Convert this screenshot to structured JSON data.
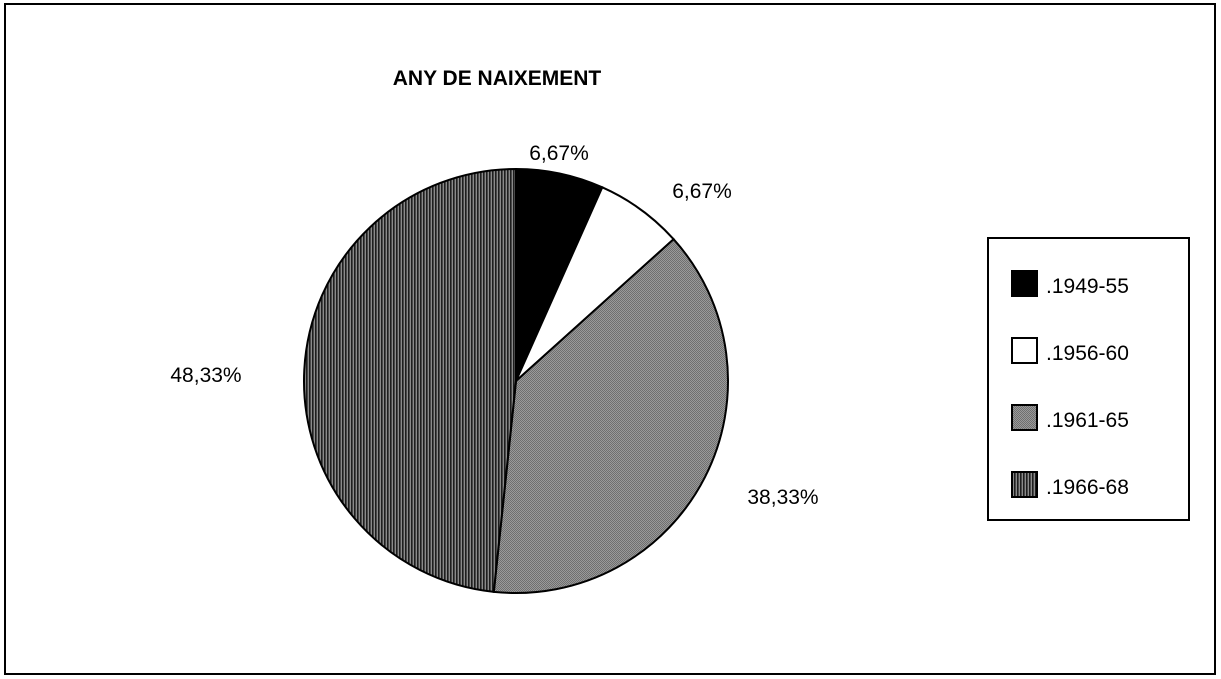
{
  "chart_data": {
    "type": "pie",
    "title": "ANY DE NAIXEMENT",
    "categories": [
      ".1949-55",
      ".1956-60",
      ".1961-65",
      ".1966-68"
    ],
    "values": [
      6.67,
      6.67,
      38.33,
      48.33
    ],
    "labels": [
      "6,67%",
      "6,67%",
      "38,33%",
      "48,33%"
    ],
    "fills": [
      "solid-black",
      "white",
      "gray",
      "dark-vertical-stripes"
    ],
    "colors": [
      "#000000",
      "#ffffff",
      "#8c8c8c",
      "#4a4a4a"
    ],
    "legend_position": "right"
  }
}
